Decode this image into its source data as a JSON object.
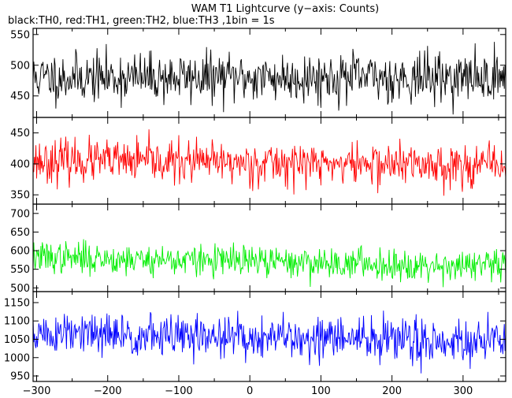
{
  "chart_data": {
    "type": "line",
    "title": "WAM T1 Lightcurve (y−axis: Counts)",
    "subtitle": "black:TH0, red:TH1, green:TH2, blue:TH3 ,1bin = 1s",
    "xlim": [
      -305,
      360
    ],
    "x_ticks": [
      -300,
      -200,
      -100,
      0,
      100,
      200,
      300
    ],
    "x_tick_labels": [
      "−300",
      "−200",
      "−100",
      "0",
      "100",
      "200",
      "300"
    ],
    "panels": [
      {
        "name": "TH0",
        "color": "#000000",
        "ylim": [
          415,
          560
        ],
        "y_ticks": [
          450,
          500,
          550
        ],
        "y_tick_labels": [
          "450",
          "500",
          "550"
        ],
        "mean": 480,
        "spread": 20,
        "trend": 0,
        "seed": 11
      },
      {
        "name": "TH1",
        "color": "#ff0000",
        "ylim": [
          335,
          475
        ],
        "y_ticks": [
          350,
          400,
          450
        ],
        "y_tick_labels": [
          "350",
          "400",
          "450"
        ],
        "mean": 403,
        "spread": 17,
        "trend": -8,
        "seed": 23
      },
      {
        "name": "TH2",
        "color": "#00ee00",
        "ylim": [
          490,
          725
        ],
        "y_ticks": [
          500,
          550,
          600,
          650,
          700
        ],
        "y_tick_labels": [
          "500",
          "550",
          "600",
          "650",
          "700"
        ],
        "mean": 575,
        "spread": 21,
        "trend": -25,
        "seed": 37
      },
      {
        "name": "TH3",
        "color": "#0000ff",
        "ylim": [
          935,
          1180
        ],
        "y_ticks": [
          950,
          1000,
          1050,
          1100,
          1150
        ],
        "y_tick_labels": [
          "950",
          "1000",
          "1050",
          "1100",
          "1150"
        ],
        "mean": 1058,
        "spread": 30,
        "trend": -20,
        "seed": 51
      }
    ]
  }
}
